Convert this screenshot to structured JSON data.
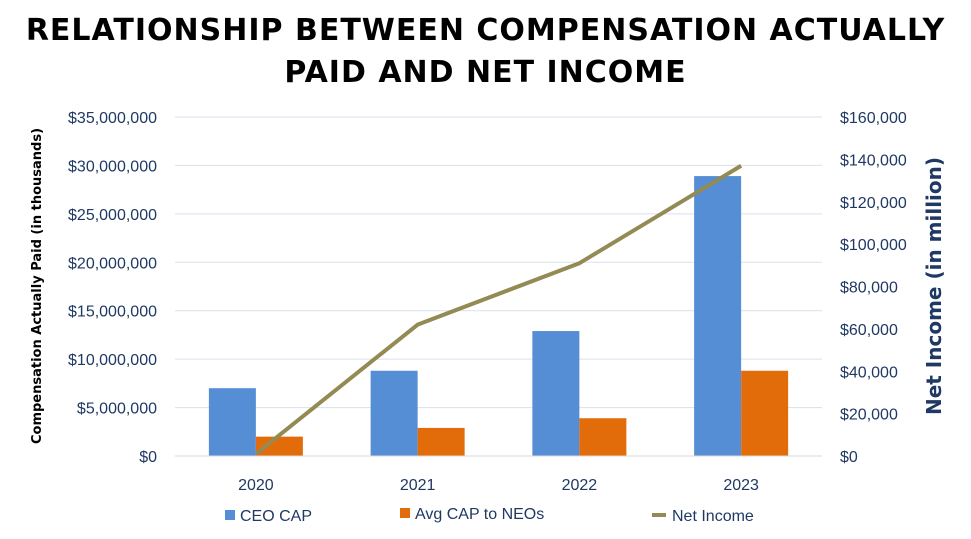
{
  "chart_data": {
    "type": "bar",
    "title": "RELATIONSHIP BETWEEN COMPENSATION ACTUALLY PAID AND NET INCOME",
    "categories": [
      "2020",
      "2021",
      "2022",
      "2023"
    ],
    "ylabel": "Compensation Actually Paid (in thousands)",
    "ylabel_right": "Net Income (in million)",
    "ylim": [
      0,
      35000000
    ],
    "ylim_right": [
      0,
      160000
    ],
    "yticks": [
      "$0",
      "$5,000,000",
      "$10,000,000",
      "$15,000,000",
      "$20,000,000",
      "$25,000,000",
      "$30,000,000",
      "$35,000,000"
    ],
    "yticks_right": [
      "$0",
      "$20,000",
      "$40,000",
      "$60,000",
      "$80,000",
      "$100,000",
      "$120,000",
      "$140,000",
      "$160,000"
    ],
    "grid": true,
    "legend_position": "bottom",
    "series": [
      {
        "name": "CEO CAP",
        "type": "bar",
        "axis": "left",
        "color": "#558ed5",
        "values": [
          7000000,
          8800000,
          12900000,
          28900000
        ]
      },
      {
        "name": "Avg CAP to NEOs",
        "type": "bar",
        "axis": "left",
        "color": "#e36c0a",
        "values": [
          2000000,
          2900000,
          3900000,
          8800000
        ]
      },
      {
        "name": "Net Income",
        "type": "line",
        "axis": "right",
        "color": "#948a54",
        "values": [
          1000,
          62000,
          91000,
          137000
        ]
      }
    ]
  }
}
